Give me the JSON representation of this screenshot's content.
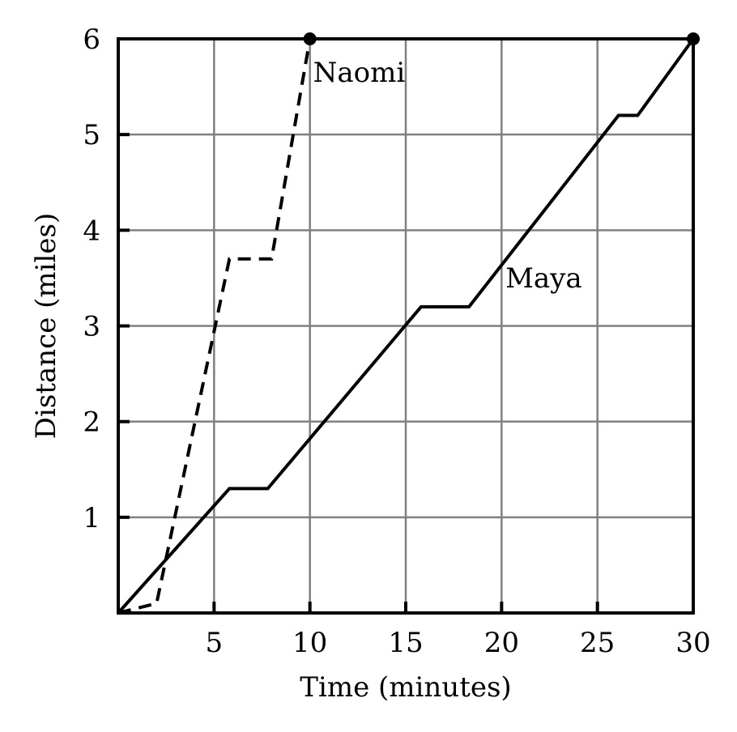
{
  "chart_data": {
    "type": "line",
    "xlabel": "Time (minutes)",
    "ylabel": "Distance (miles)",
    "xlim": [
      0,
      30
    ],
    "ylim": [
      0,
      6
    ],
    "xticks": [
      5,
      10,
      15,
      20,
      25,
      30
    ],
    "yticks": [
      1,
      2,
      3,
      4,
      5,
      6
    ],
    "grid": true,
    "series": [
      {
        "name": "Naomi",
        "style": "dashed",
        "color": "#000000",
        "x": [
          0,
          2,
          5.8,
          8,
          10
        ],
        "y": [
          0,
          0.1,
          3.7,
          3.7,
          6
        ],
        "end_marker": true
      },
      {
        "name": "Maya",
        "style": "solid",
        "color": "#000000",
        "x": [
          0,
          5.8,
          7.8,
          15.8,
          18.3,
          26.1,
          27.1,
          30
        ],
        "y": [
          0,
          1.3,
          1.3,
          3.2,
          3.2,
          5.2,
          5.2,
          6
        ],
        "end_marker": true
      }
    ]
  }
}
